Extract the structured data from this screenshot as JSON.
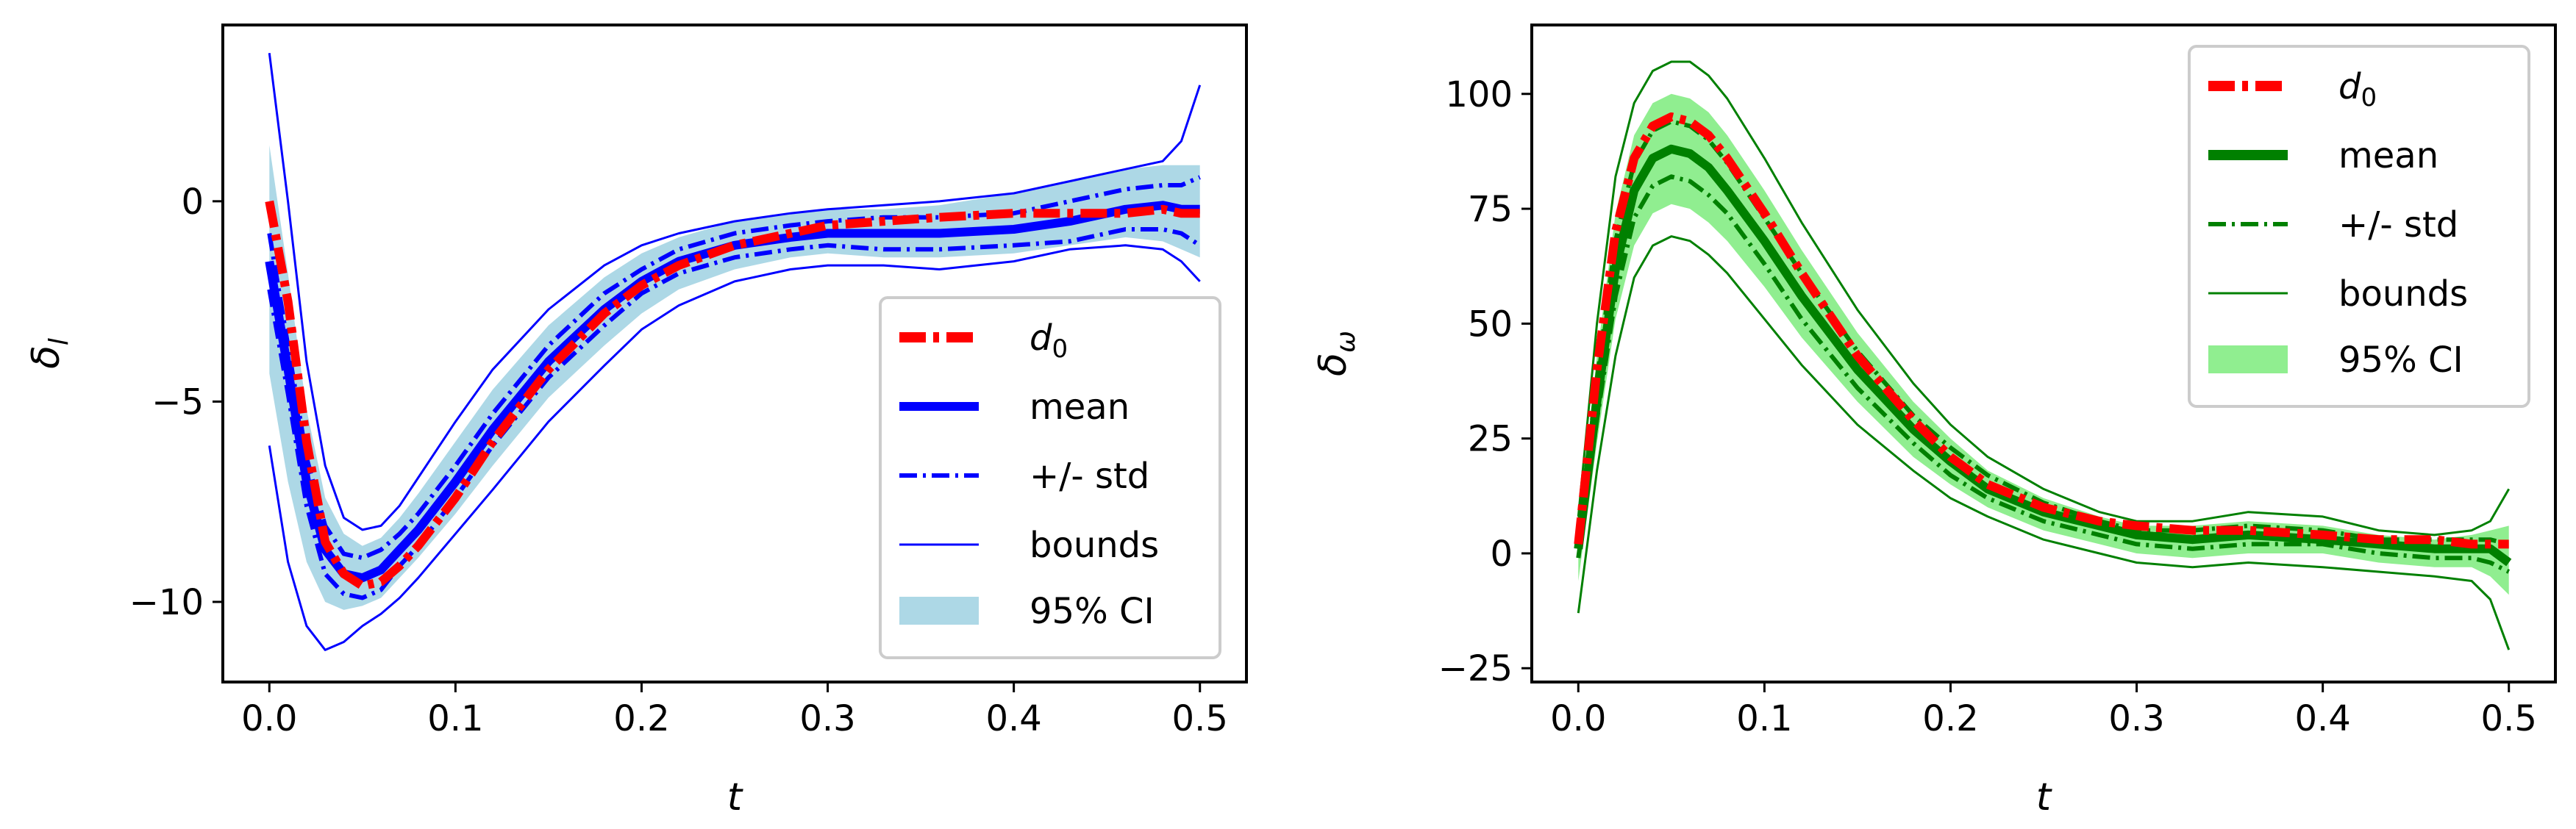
{
  "chart_data": [
    {
      "type": "line",
      "xlabel": "t",
      "ylabel": "δ_l",
      "ylabel_main": "δ",
      "ylabel_sub": "l",
      "xlim": [
        -0.025,
        0.525
      ],
      "ylim": [
        -12.0,
        4.4
      ],
      "xticks": [
        0.0,
        0.1,
        0.2,
        0.3,
        0.4,
        0.5
      ],
      "xtick_labels": [
        "0.0",
        "0.1",
        "0.2",
        "0.3",
        "0.4",
        "0.5"
      ],
      "yticks": [
        -10,
        -5,
        0
      ],
      "ytick_labels": [
        "−10",
        "−5",
        "0"
      ],
      "legend_position": "lower-right",
      "colors": {
        "mean": "#0000ff",
        "d0": "#ff0000",
        "ci": "#add8e6"
      },
      "legend": [
        {
          "key": "d0",
          "label_main": "d",
          "label_sub": "0"
        },
        {
          "key": "mean",
          "label_main": "mean"
        },
        {
          "key": "std",
          "label_main": "+/- std"
        },
        {
          "key": "bounds",
          "label_main": "bounds"
        },
        {
          "key": "ci",
          "label_main": "95% CI"
        }
      ],
      "x": [
        0.0,
        0.01,
        0.02,
        0.03,
        0.04,
        0.05,
        0.06,
        0.07,
        0.08,
        0.1,
        0.12,
        0.15,
        0.18,
        0.2,
        0.22,
        0.25,
        0.28,
        0.3,
        0.33,
        0.36,
        0.4,
        0.43,
        0.46,
        0.48,
        0.49,
        0.5
      ],
      "series": [
        {
          "name": "d0",
          "values": [
            0.0,
            -2.5,
            -6.0,
            -8.5,
            -9.3,
            -9.6,
            -9.5,
            -9.1,
            -8.6,
            -7.4,
            -6.0,
            -4.2,
            -2.8,
            -2.1,
            -1.6,
            -1.1,
            -0.8,
            -0.6,
            -0.5,
            -0.4,
            -0.3,
            -0.3,
            -0.3,
            -0.2,
            -0.3,
            -0.3
          ]
        },
        {
          "name": "mean",
          "values": [
            -1.5,
            -4.2,
            -7.0,
            -8.7,
            -9.3,
            -9.4,
            -9.2,
            -8.7,
            -8.2,
            -7.0,
            -5.7,
            -4.0,
            -2.7,
            -2.0,
            -1.5,
            -1.1,
            -0.9,
            -0.8,
            -0.8,
            -0.8,
            -0.7,
            -0.5,
            -0.2,
            -0.1,
            -0.2,
            -0.2
          ]
        },
        {
          "name": "std_upper",
          "values": [
            -0.8,
            -3.6,
            -6.4,
            -8.1,
            -8.8,
            -8.9,
            -8.7,
            -8.3,
            -7.8,
            -6.6,
            -5.3,
            -3.6,
            -2.3,
            -1.7,
            -1.2,
            -0.8,
            -0.6,
            -0.5,
            -0.4,
            -0.4,
            -0.3,
            0.0,
            0.3,
            0.4,
            0.4,
            0.6
          ]
        },
        {
          "name": "std_lower",
          "values": [
            -2.2,
            -4.8,
            -7.6,
            -9.3,
            -9.8,
            -9.9,
            -9.7,
            -9.1,
            -8.6,
            -7.4,
            -6.1,
            -4.4,
            -3.1,
            -2.3,
            -1.8,
            -1.4,
            -1.2,
            -1.1,
            -1.2,
            -1.2,
            -1.1,
            -1.0,
            -0.7,
            -0.7,
            -0.8,
            -1.1
          ]
        },
        {
          "name": "bounds_upper",
          "values": [
            3.7,
            0.0,
            -4.0,
            -6.6,
            -7.9,
            -8.2,
            -8.1,
            -7.6,
            -6.9,
            -5.5,
            -4.2,
            -2.7,
            -1.6,
            -1.1,
            -0.8,
            -0.5,
            -0.3,
            -0.2,
            -0.1,
            0.0,
            0.2,
            0.5,
            0.8,
            1.0,
            1.5,
            2.9
          ]
        },
        {
          "name": "bounds_lower",
          "values": [
            -6.1,
            -9.0,
            -10.6,
            -11.2,
            -11.0,
            -10.6,
            -10.3,
            -9.9,
            -9.4,
            -8.3,
            -7.2,
            -5.5,
            -4.1,
            -3.2,
            -2.6,
            -2.0,
            -1.7,
            -1.6,
            -1.6,
            -1.7,
            -1.5,
            -1.2,
            -1.1,
            -1.2,
            -1.5,
            -2.0
          ]
        },
        {
          "name": "ci_upper",
          "values": [
            1.4,
            -1.8,
            -5.2,
            -7.4,
            -8.3,
            -8.6,
            -8.4,
            -7.9,
            -7.3,
            -6.0,
            -4.7,
            -3.1,
            -1.9,
            -1.3,
            -0.9,
            -0.5,
            -0.3,
            -0.2,
            -0.2,
            -0.1,
            0.2,
            0.5,
            0.8,
            0.9,
            0.9,
            0.9
          ]
        },
        {
          "name": "ci_lower",
          "values": [
            -4.3,
            -7.0,
            -9.0,
            -10.0,
            -10.2,
            -10.1,
            -9.9,
            -9.4,
            -8.9,
            -7.8,
            -6.6,
            -4.9,
            -3.6,
            -2.8,
            -2.2,
            -1.7,
            -1.4,
            -1.3,
            -1.4,
            -1.4,
            -1.3,
            -1.1,
            -0.9,
            -1.0,
            -1.2,
            -1.4
          ]
        }
      ]
    },
    {
      "type": "line",
      "xlabel": "t",
      "ylabel": "δ_ω",
      "ylabel_main": "δ",
      "ylabel_sub": "ω",
      "xlim": [
        -0.025,
        0.525
      ],
      "ylim": [
        -28,
        115
      ],
      "xticks": [
        0.0,
        0.1,
        0.2,
        0.3,
        0.4,
        0.5
      ],
      "xtick_labels": [
        "0.0",
        "0.1",
        "0.2",
        "0.3",
        "0.4",
        "0.5"
      ],
      "yticks": [
        -25,
        0,
        25,
        50,
        75,
        100
      ],
      "ytick_labels": [
        "−25",
        "0",
        "25",
        "50",
        "75",
        "100"
      ],
      "legend_position": "upper-right",
      "colors": {
        "mean": "#008000",
        "d0": "#ff0000",
        "ci": "#90ee90"
      },
      "legend": [
        {
          "key": "d0",
          "label_main": "d",
          "label_sub": "0"
        },
        {
          "key": "mean",
          "label_main": "mean"
        },
        {
          "key": "std",
          "label_main": "+/- std"
        },
        {
          "key": "bounds",
          "label_main": "bounds"
        },
        {
          "key": "ci",
          "label_main": "95% CI"
        }
      ],
      "x": [
        0.0,
        0.01,
        0.02,
        0.03,
        0.04,
        0.05,
        0.06,
        0.07,
        0.08,
        0.1,
        0.12,
        0.15,
        0.18,
        0.2,
        0.22,
        0.25,
        0.28,
        0.3,
        0.33,
        0.36,
        0.4,
        0.43,
        0.46,
        0.48,
        0.49,
        0.5
      ],
      "series": [
        {
          "name": "d0",
          "values": [
            2,
            40,
            70,
            86,
            93,
            95,
            94,
            91,
            86,
            74,
            61,
            43,
            29,
            21,
            15,
            10,
            7,
            6,
            5,
            5,
            4,
            3,
            3,
            2,
            2,
            2
          ]
        },
        {
          "name": "mean",
          "values": [
            1,
            33,
            62,
            79,
            86,
            88,
            87,
            84,
            79,
            68,
            56,
            40,
            27,
            20,
            14,
            9,
            6,
            4,
            3,
            4,
            3,
            2,
            1,
            1,
            1,
            -2
          ]
        },
        {
          "name": "std_upper",
          "values": [
            3,
            38,
            68,
            85,
            92,
            94,
            93,
            90,
            85,
            73,
            61,
            44,
            30,
            23,
            17,
            11,
            7,
            5,
            5,
            6,
            5,
            3,
            3,
            3,
            3,
            2
          ]
        },
        {
          "name": "std_lower",
          "values": [
            -1,
            29,
            56,
            73,
            80,
            82,
            81,
            78,
            74,
            63,
            51,
            36,
            24,
            17,
            12,
            7,
            4,
            2,
            1,
            2,
            2,
            0,
            -1,
            -1,
            -2,
            -4
          ]
        },
        {
          "name": "bounds_upper",
          "values": [
            8,
            50,
            82,
            98,
            105,
            107,
            107,
            104,
            99,
            86,
            72,
            53,
            37,
            28,
            21,
            14,
            9,
            7,
            7,
            9,
            8,
            5,
            4,
            5,
            7,
            14
          ]
        },
        {
          "name": "bounds_lower",
          "values": [
            -13,
            18,
            43,
            60,
            67,
            69,
            68,
            65,
            61,
            51,
            41,
            28,
            18,
            12,
            8,
            3,
            0,
            -2,
            -3,
            -2,
            -3,
            -4,
            -5,
            -6,
            -10,
            -21
          ]
        },
        {
          "name": "ci_upper",
          "values": [
            5,
            43,
            74,
            91,
            98,
            100,
            99,
            96,
            91,
            79,
            66,
            48,
            33,
            25,
            18,
            12,
            8,
            6,
            6,
            7,
            6,
            4,
            3,
            4,
            5,
            6
          ]
        },
        {
          "name": "ci_lower",
          "values": [
            -6,
            24,
            51,
            67,
            74,
            76,
            75,
            72,
            68,
            58,
            47,
            33,
            21,
            15,
            10,
            5,
            2,
            0,
            -1,
            0,
            0,
            -2,
            -3,
            -3,
            -5,
            -9
          ]
        }
      ]
    }
  ]
}
